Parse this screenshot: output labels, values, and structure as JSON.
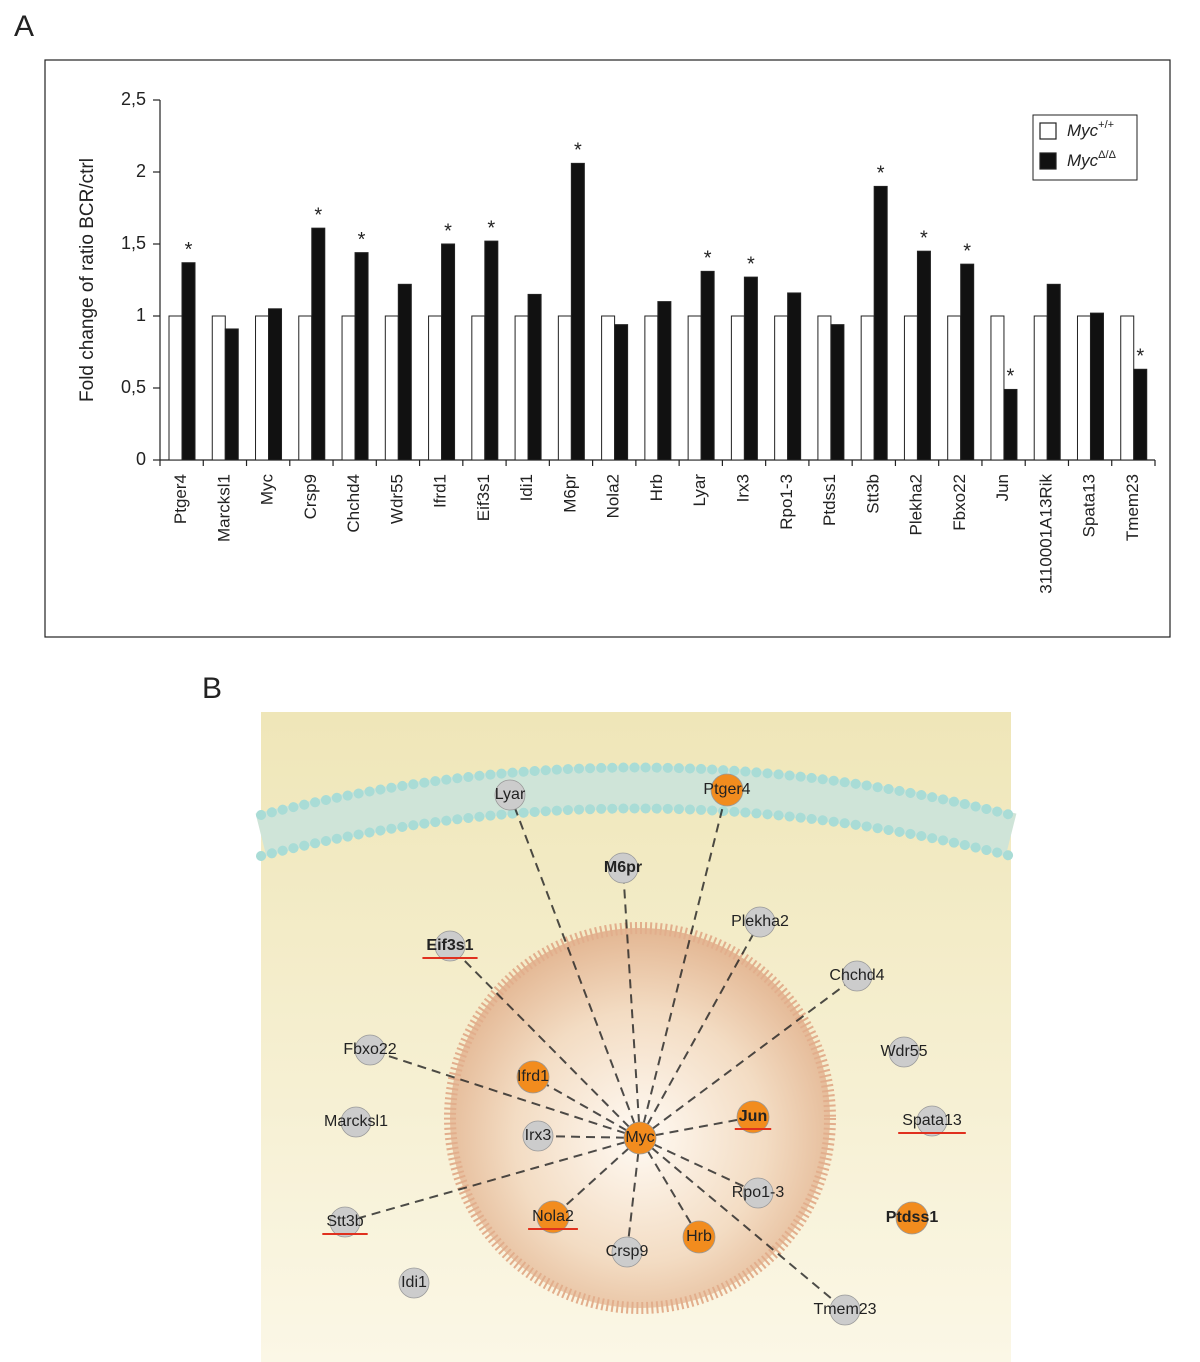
{
  "panel_labels": [
    "A",
    "B"
  ],
  "chart_data": {
    "type": "bar",
    "y_label": "Fold change of ratio BCR/ctrl",
    "categories": [
      "Ptger4",
      "Marcksl1",
      "Myc",
      "Crsp9",
      "Chchd4",
      "Wdr55",
      "Ifrd1",
      "Eif3s1",
      "Idi1",
      "M6pr",
      "Nola2",
      "Hrb",
      "Lyar",
      "Irx3",
      "Rpo1-3",
      "Ptdss1",
      "Stt3b",
      "Plekha2",
      "Fbxo22",
      "Jun",
      "3110001A13Rik",
      "Spata13",
      "Tmem23"
    ],
    "series": [
      {
        "name": "Myc",
        "name_superscript": "+/+",
        "color": "#ffffff",
        "values": [
          1,
          1,
          1,
          1,
          1,
          1,
          1,
          1,
          1,
          1,
          1,
          1,
          1,
          1,
          1,
          1,
          1,
          1,
          1,
          1,
          1,
          1,
          1
        ]
      },
      {
        "name": "Myc",
        "name_superscript": "Δ/Δ",
        "color": "#111111",
        "values": [
          1.37,
          0.91,
          1.05,
          1.61,
          1.44,
          1.22,
          1.5,
          1.52,
          1.15,
          2.06,
          0.94,
          1.1,
          1.31,
          1.27,
          1.16,
          0.94,
          1.9,
          1.45,
          1.36,
          0.49,
          1.22,
          1.02,
          0.63
        ],
        "significant": [
          true,
          false,
          false,
          true,
          true,
          false,
          true,
          true,
          false,
          true,
          false,
          false,
          true,
          true,
          false,
          false,
          true,
          true,
          true,
          true,
          false,
          false,
          true
        ]
      }
    ],
    "significance_marker": "*",
    "ylim": [
      0,
      2.5
    ],
    "yticks": [
      0,
      {
        "value": 0.5,
        "label": "0,5"
      },
      1,
      {
        "value": 1.5,
        "label": "1,5"
      },
      2,
      {
        "value": 2.5,
        "label": "2,5"
      }
    ],
    "legend_position": "upper right"
  },
  "diagram": {
    "nodes": [
      {
        "label": "Lyar",
        "fill": "#cccccc"
      },
      {
        "label": "Ptger4",
        "fill": "#f28c1e"
      },
      {
        "label": "M6pr",
        "fill": "#cccccc",
        "label_color": "#1a1acc"
      },
      {
        "label": "Plekha2",
        "fill": "#cccccc"
      },
      {
        "label": "Eif3s1",
        "fill": "#cccccc",
        "label_color": "#1a1acc",
        "underline": true
      },
      {
        "label": "Chchd4",
        "fill": "#cccccc"
      },
      {
        "label": "Fbxo22",
        "fill": "#cccccc"
      },
      {
        "label": "Ifrd1",
        "fill": "#f28c1e"
      },
      {
        "label": "Wdr55",
        "fill": "#cccccc"
      },
      {
        "label": "Marcksl1",
        "fill": "#cccccc"
      },
      {
        "label": "Irx3",
        "fill": "#cccccc"
      },
      {
        "label": "Myc",
        "fill": "#f28c1e"
      },
      {
        "label": "Jun",
        "fill": "#f28c1e",
        "label_color": "#1a1acc",
        "underline": true
      },
      {
        "label": "Spata13",
        "fill": "#cccccc",
        "underline": true
      },
      {
        "label": "Rpo1-3",
        "fill": "#cccccc"
      },
      {
        "label": "Stt3b",
        "fill": "#cccccc",
        "underline": true
      },
      {
        "label": "Nola2",
        "fill": "#f28c1e",
        "underline": true
      },
      {
        "label": "Ptdss1",
        "fill": "#f28c1e",
        "label_color": "#1a1acc"
      },
      {
        "label": "Hrb",
        "fill": "#f28c1e"
      },
      {
        "label": "Crsp9",
        "fill": "#cccccc"
      },
      {
        "label": "Idi1",
        "fill": "#cccccc"
      },
      {
        "label": "Tmem23",
        "fill": "#cccccc"
      }
    ]
  }
}
